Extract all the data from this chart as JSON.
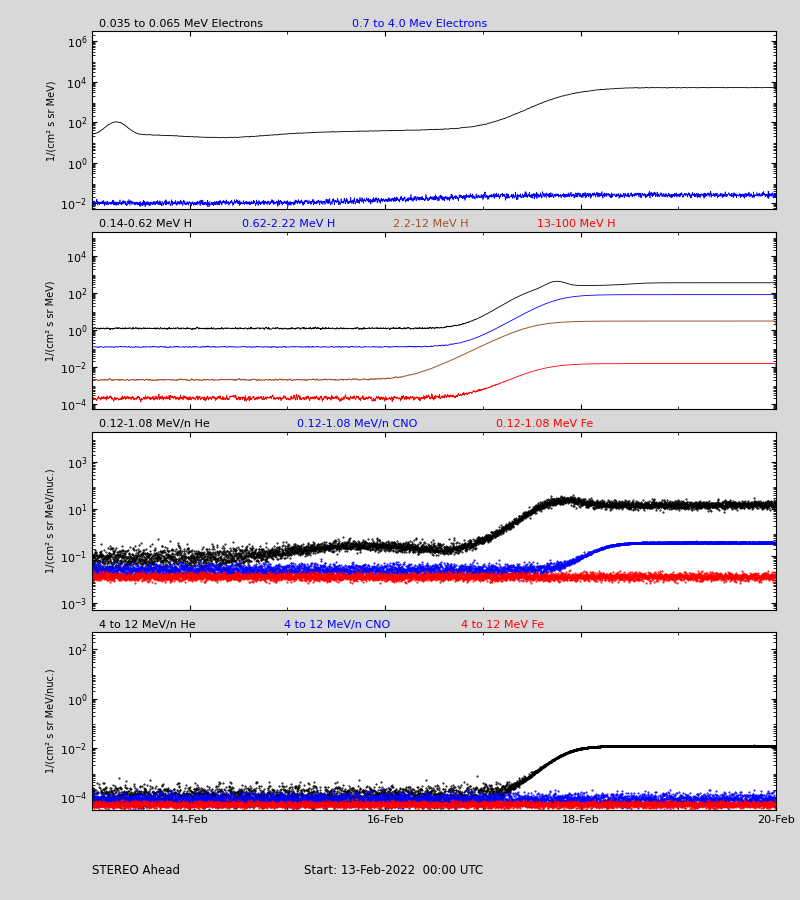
{
  "title_bottom_left": "STEREO Ahead",
  "title_bottom_right": "Start: 13-Feb-2022  00:00 UTC",
  "panel1": {
    "legend": [
      "0.035 to 0.065 MeV Electrons",
      "0.7 to 4.0 Mev Electrons"
    ],
    "legend_colors": [
      "black",
      "blue"
    ],
    "ylabel": "1/(cm² s sr MeV)",
    "ylim": [
      0.005,
      3000000.0
    ],
    "yticks": [
      0.01,
      1.0,
      100.0,
      10000.0,
      1000000.0
    ]
  },
  "panel2": {
    "legend": [
      "0.14-0.62 MeV H",
      "0.62-2.22 MeV H",
      "2.2-12 MeV H",
      "13-100 MeV H"
    ],
    "legend_colors": [
      "black",
      "blue",
      "#a0522d",
      "red"
    ],
    "ylabel": "1/(cm² s sr MeV)",
    "ylim": [
      5e-05,
      200000.0
    ],
    "yticks": [
      0.0001,
      0.01,
      1.0,
      100.0,
      10000.0
    ]
  },
  "panel3": {
    "legend": [
      "0.12-1.08 MeV/n He",
      "0.12-1.08 MeV/n CNO",
      "0.12-1.08 MeV Fe"
    ],
    "legend_colors": [
      "black",
      "blue",
      "red"
    ],
    "ylabel": "1/(cm² s sr MeV/nuc.)",
    "ylim": [
      0.0005,
      20000.0
    ],
    "yticks": [
      0.001,
      0.1,
      10.0,
      1000.0
    ]
  },
  "panel4": {
    "legend": [
      "4 to 12 MeV/n He",
      "4 to 12 MeV/n CNO",
      "4 to 12 MeV Fe"
    ],
    "legend_colors": [
      "black",
      "blue",
      "red"
    ],
    "ylabel": "1/(cm² s sr MeV/nuc.)",
    "ylim": [
      3e-05,
      500.0
    ],
    "yticks": [
      0.0001,
      0.01,
      1.0,
      100.0
    ]
  },
  "xstart": 0.0,
  "xend": 7.0,
  "xtick_positions": [
    1.0,
    3.0,
    5.0,
    7.0
  ],
  "xtick_labels": [
    "14-Feb",
    "16-Feb",
    "18-Feb",
    "20-Feb"
  ],
  "bg_color": "#d8d8d8",
  "axes_bg": "white"
}
